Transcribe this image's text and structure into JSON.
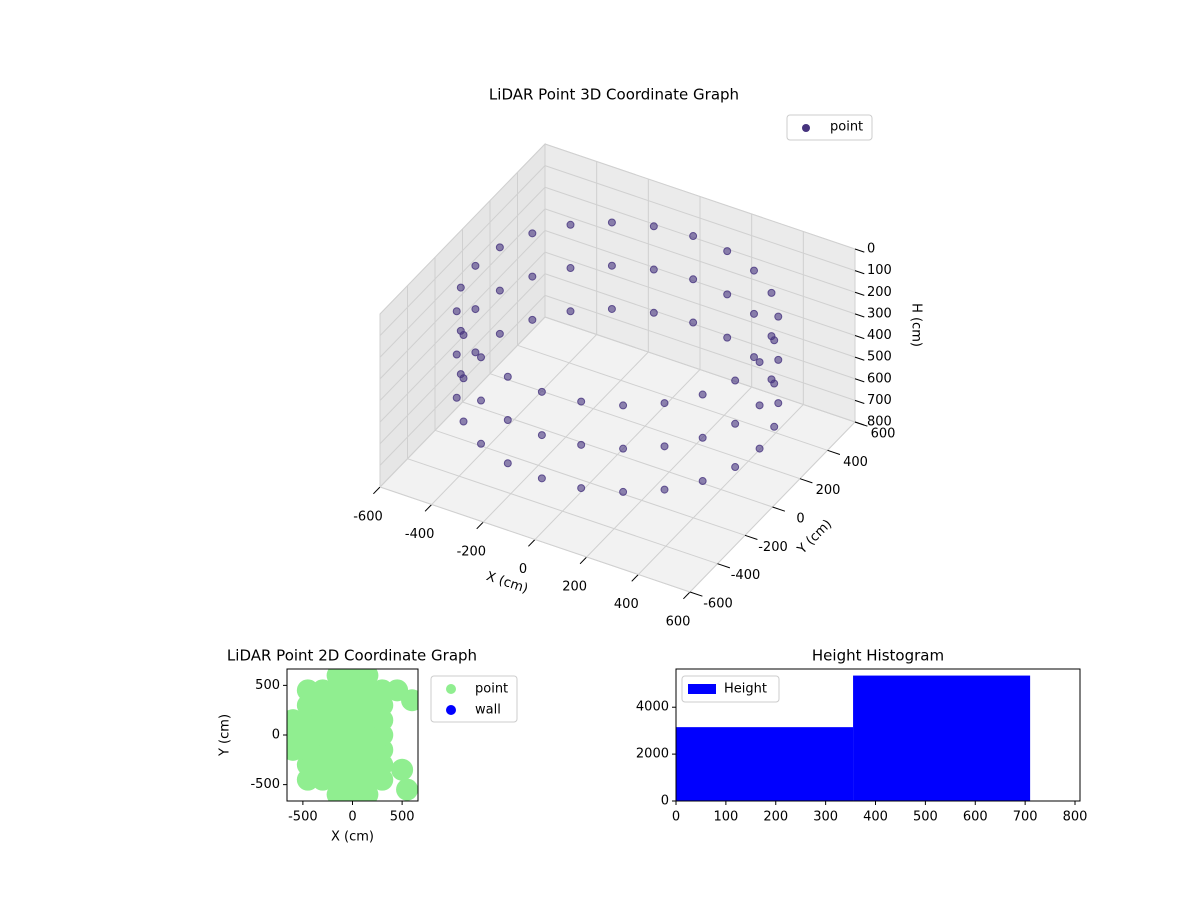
{
  "chart_data": [
    {
      "type": "scatter3d",
      "title": "LiDAR Point 3D Coordinate Graph",
      "xlabel": "X (cm)",
      "ylabel": "Y (cm)",
      "zlabel": "H (cm)",
      "xlim": [
        -600,
        600
      ],
      "ylim": [
        -600,
        600
      ],
      "zlim": [
        800,
        0
      ],
      "xticks": [
        -600,
        -400,
        -200,
        0,
        200,
        400,
        600
      ],
      "yticks": [
        -600,
        -400,
        -200,
        0,
        200,
        400,
        600
      ],
      "zticks": [
        0,
        100,
        200,
        300,
        400,
        500,
        600,
        700,
        800
      ],
      "legend": "upper right",
      "series": [
        {
          "name": "point",
          "color": "#46337e",
          "x": [
            550,
            531,
            476,
            389,
            275,
            142,
            0,
            -142,
            -275,
            -389,
            -476,
            -531,
            -550,
            -531,
            -476,
            -389,
            -275,
            -142,
            0,
            142,
            275,
            389,
            476,
            531,
            550,
            531,
            476,
            389,
            275,
            142,
            0,
            -142,
            -275,
            -389,
            -476,
            -531,
            -550,
            -531,
            -476,
            -389,
            -275,
            -142,
            0,
            142,
            275,
            389,
            476,
            531,
            550,
            531,
            476,
            389,
            275,
            142,
            0,
            -142,
            -275,
            -389,
            -476,
            -531,
            -550,
            -531,
            -476,
            -389,
            -275,
            -142,
            0,
            142,
            275,
            389,
            476,
            531
          ],
          "y": [
            0,
            142,
            275,
            389,
            476,
            531,
            550,
            531,
            476,
            389,
            275,
            142,
            0,
            -142,
            -275,
            -389,
            -476,
            -531,
            -550,
            -531,
            -476,
            -389,
            -275,
            -142,
            0,
            142,
            275,
            389,
            476,
            531,
            550,
            531,
            476,
            389,
            275,
            142,
            0,
            -142,
            -275,
            -389,
            -476,
            -531,
            -550,
            -531,
            -476,
            -389,
            -275,
            -142,
            0,
            142,
            275,
            389,
            476,
            531,
            550,
            531,
            476,
            389,
            275,
            142,
            0,
            -142,
            -275,
            -389,
            -476,
            -531,
            -550,
            -531,
            -476,
            -389,
            -275,
            -142
          ],
          "z": [
            150,
            150,
            150,
            150,
            150,
            150,
            150,
            150,
            150,
            150,
            150,
            150,
            150,
            150,
            150,
            150,
            150,
            150,
            150,
            150,
            150,
            150,
            150,
            150,
            350,
            350,
            350,
            350,
            350,
            350,
            350,
            350,
            350,
            350,
            350,
            350,
            350,
            350,
            350,
            350,
            350,
            350,
            350,
            350,
            350,
            350,
            350,
            350,
            550,
            550,
            550,
            550,
            550,
            550,
            550,
            550,
            550,
            550,
            550,
            550,
            550,
            550,
            550,
            550,
            550,
            550,
            550,
            550,
            550,
            550,
            550,
            550
          ]
        }
      ]
    },
    {
      "type": "scatter",
      "title": "LiDAR Point 2D Coordinate Graph",
      "xlabel": "X (cm)",
      "ylabel": "Y (cm)",
      "xlim": [
        -660,
        660
      ],
      "ylim": [
        -665,
        665
      ],
      "xticks": [
        -500,
        0,
        500
      ],
      "yticks": [
        -500,
        0,
        500
      ],
      "legend": "outside right",
      "series": [
        {
          "name": "point",
          "color": "#90ee90",
          "x": [
            -600,
            -600,
            -600,
            -450,
            -450,
            -450,
            -450,
            -450,
            -450,
            -450,
            -300,
            -300,
            -300,
            -300,
            -300,
            -300,
            -300,
            -150,
            -150,
            -150,
            -150,
            -150,
            -150,
            -150,
            -150,
            -150,
            0,
            0,
            0,
            0,
            0,
            0,
            0,
            0,
            0,
            150,
            150,
            150,
            150,
            150,
            150,
            150,
            150,
            150,
            300,
            300,
            300,
            300,
            300,
            300,
            300,
            450,
            500,
            600,
            550
          ],
          "y": [
            -150,
            0,
            150,
            -450,
            -300,
            -150,
            0,
            150,
            300,
            450,
            -450,
            -300,
            -150,
            0,
            150,
            300,
            450,
            -600,
            -450,
            -300,
            -150,
            0,
            150,
            300,
            450,
            600,
            -600,
            -450,
            -300,
            -150,
            0,
            150,
            300,
            450,
            600,
            -600,
            -450,
            -300,
            -150,
            0,
            150,
            300,
            450,
            600,
            -450,
            -300,
            -150,
            0,
            150,
            300,
            450,
            450,
            -350,
            350,
            -550
          ]
        },
        {
          "name": "wall",
          "color": "#0000ff",
          "x": [],
          "y": []
        }
      ]
    },
    {
      "type": "histogram",
      "title": "Height Histogram",
      "bins": [
        0,
        355,
        710
      ],
      "xlim": [
        0,
        810
      ],
      "ylim": [
        0,
        5630
      ],
      "xticks": [
        0,
        100,
        200,
        300,
        400,
        500,
        600,
        700,
        800
      ],
      "yticks": [
        0,
        2000,
        4000
      ],
      "legend": "upper left",
      "series": [
        {
          "name": "Height",
          "color": "#0000ff",
          "values": [
            3150,
            5350
          ]
        }
      ]
    }
  ]
}
